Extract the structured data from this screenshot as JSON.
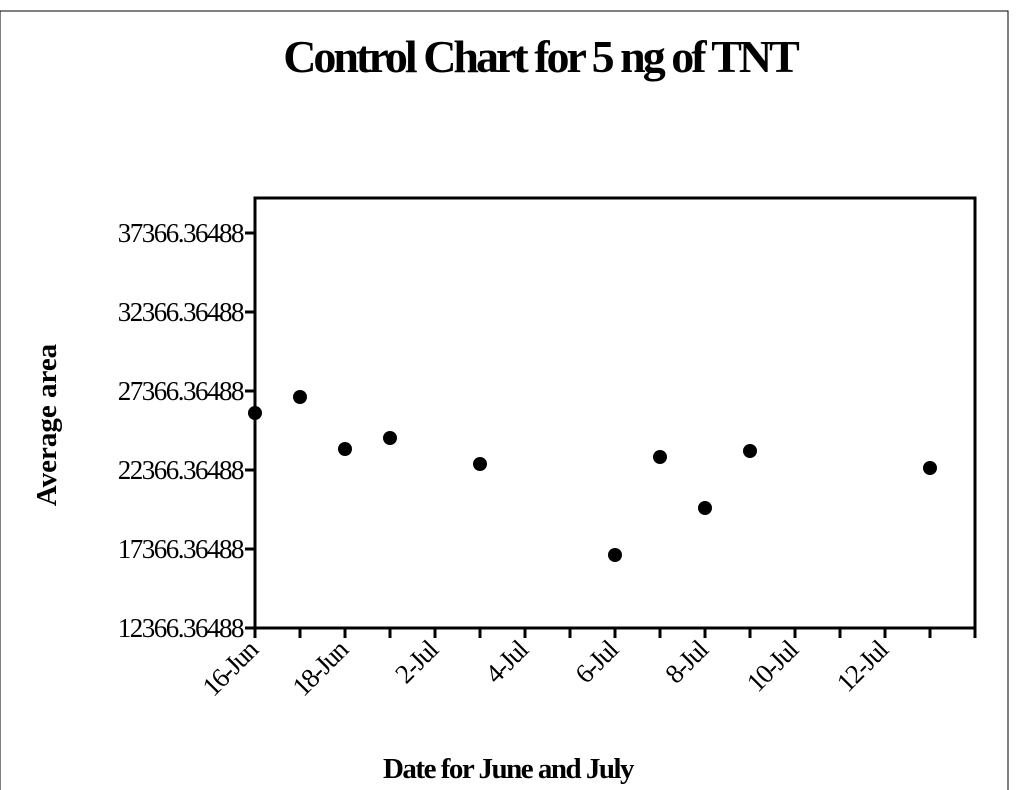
{
  "chart_data": {
    "type": "scatter",
    "title": "Control Chart for 5 ng of TNT",
    "x_label": "Date for June and July",
    "y_label": "Average area",
    "categories": [
      "16-Jun",
      null,
      "18-Jun",
      null,
      "2-Jul",
      null,
      "4-Jul",
      null,
      "6-Jul",
      null,
      "8-Jul",
      null,
      "10-Jul",
      null,
      "12-Jul",
      null
    ],
    "series": [
      {
        "name": "Average area",
        "color": "#000000",
        "values": [
          25974,
          26987,
          23695,
          24392,
          null,
          22746,
          null,
          null,
          16987,
          23189,
          19961,
          23569,
          null,
          null,
          null,
          22493
        ]
      }
    ],
    "ylim": [
      12366.36488,
      39581
    ],
    "yticks": [
      12366.36488,
      17366.36488,
      22366.36488,
      27366.36488,
      32366.36488,
      37366.36488
    ]
  }
}
